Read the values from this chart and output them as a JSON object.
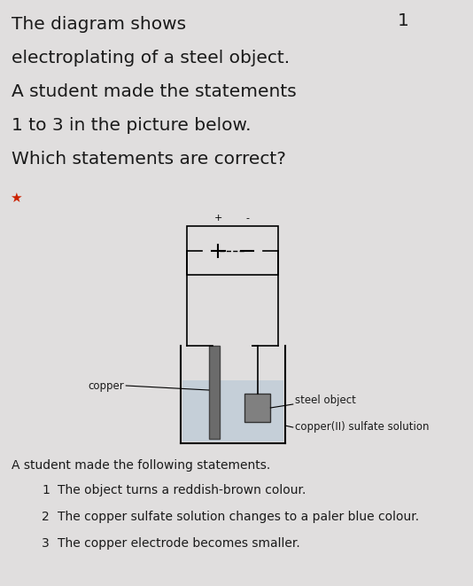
{
  "bg_color": "#e0dede",
  "title_lines": [
    "The diagram shows",
    "electroplating of a steel object.",
    "A student made the statements",
    "1 to 3 in the picture below.",
    "Which statements are correct?"
  ],
  "star_color": "#cc2200",
  "question_number": "1",
  "diagram": {
    "solution_color": "#c5cfd8",
    "copper_electrode_color": "#6b6b6b",
    "steel_object_color": "#808080",
    "label_copper": "copper",
    "label_steel": "steel object",
    "label_solution": "copper(II) sulfate solution"
  },
  "statements_header": "A student made the following statements.",
  "statements": [
    "The object turns a reddish-brown colour.",
    "The copper sulfate solution changes to a paler blue colour.",
    "The copper electrode becomes smaller."
  ],
  "text_color": "#1a1a1a",
  "font_size_title": 14.5,
  "font_size_statements": 10,
  "font_size_labels": 8.5,
  "font_size_header": 10
}
